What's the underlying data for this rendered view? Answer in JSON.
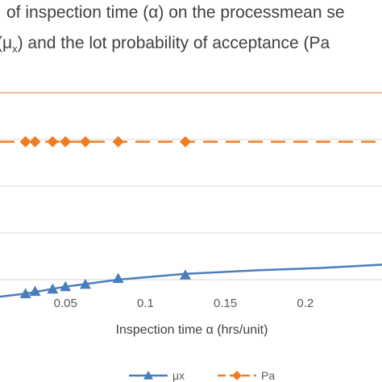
{
  "chart_data": {
    "type": "line",
    "title_lines": [
      "of inspection time (α) on the processmean se",
      "(μx) and the lot probability of acceptance (Pa"
    ],
    "title_line2_parts": {
      "open": "(",
      "mu": "μ",
      "sub": "x",
      "rest": ") and the lot probability of acceptance (Pa"
    },
    "xlabel": "Inspection time α (hrs/unit)",
    "ylabel": "",
    "xlim": [
      0.0,
      0.25
    ],
    "ylim": [
      0,
      1.0
    ],
    "x_ticks": [
      0.05,
      0.1,
      0.15,
      0.2
    ],
    "x_tick_labels": [
      "0.05",
      "0.1",
      "0.15",
      "0.2"
    ],
    "y_gridlines": [
      0.1,
      0.3,
      0.5,
      0.7,
      0.9
    ],
    "grid": true,
    "legend_position": "bottom",
    "series": [
      {
        "name": "μx",
        "color": "#4a7ebb",
        "marker": "triangle",
        "line_style": "solid",
        "x": [
          0.025,
          0.031,
          0.042,
          0.05,
          0.0625,
          0.083,
          0.125
        ],
        "y": [
          0.04,
          0.05,
          0.06,
          0.07,
          0.08,
          0.105,
          0.12
        ],
        "curve_x": [
          0.0,
          0.025,
          0.05,
          0.083,
          0.125,
          0.17,
          0.21,
          0.25
        ],
        "curve_y": [
          0.02,
          0.04,
          0.07,
          0.1,
          0.125,
          0.14,
          0.15,
          0.165
        ]
      },
      {
        "name": "Pa",
        "color": "#f07d23",
        "marker": "diamond",
        "line_style": "dashed",
        "x": [
          0.025,
          0.031,
          0.042,
          0.05,
          0.0625,
          0.083,
          0.125
        ],
        "y": [
          0.69,
          0.69,
          0.69,
          0.69,
          0.69,
          0.69,
          0.69
        ]
      }
    ],
    "top_line": {
      "y": 0.9,
      "color": "#f0a868"
    }
  }
}
